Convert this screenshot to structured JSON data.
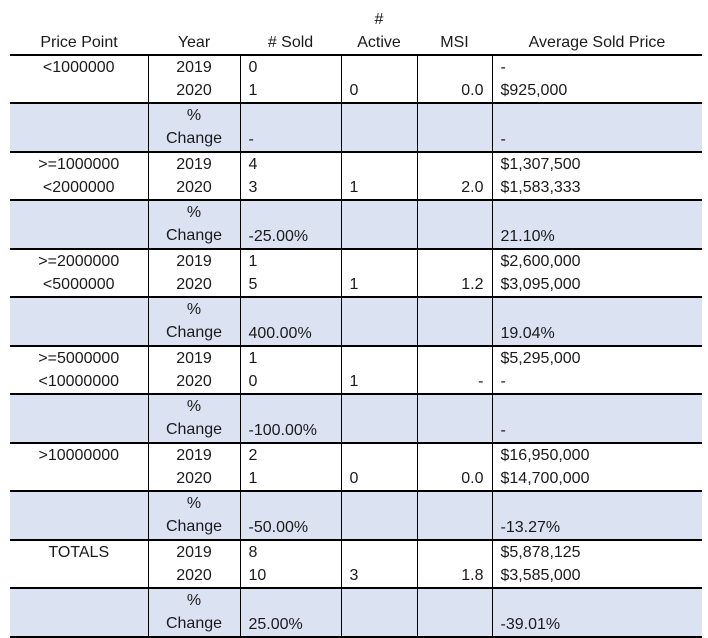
{
  "headers": {
    "price_point": "Price Point",
    "year": "Year",
    "sold": "# Sold",
    "active_top": "#",
    "active_bottom": "Active",
    "msi": "MSI",
    "avg_price": "Average Sold Price"
  },
  "change_label_top": "%",
  "change_label_bottom": "Change",
  "groups": [
    {
      "label1": "<1000000",
      "label2": "",
      "years": [
        "2019",
        "2020"
      ],
      "sold": [
        "0",
        "1"
      ],
      "active": "0",
      "msi": "0.0",
      "avg": [
        "-",
        "$925,000"
      ],
      "chg_sold": "-",
      "chg_avg": "-"
    },
    {
      "label1": ">=1000000",
      "label2": "<2000000",
      "years": [
        "2019",
        "2020"
      ],
      "sold": [
        "4",
        "3"
      ],
      "active": "1",
      "msi": "2.0",
      "avg": [
        "$1,307,500",
        "$1,583,333"
      ],
      "chg_sold": "-25.00%",
      "chg_avg": "21.10%"
    },
    {
      "label1": ">=2000000",
      "label2": "<5000000",
      "years": [
        "2019",
        "2020"
      ],
      "sold": [
        "1",
        "5"
      ],
      "active": "1",
      "msi": "1.2",
      "avg": [
        "$2,600,000",
        "$3,095,000"
      ],
      "chg_sold": "400.00%",
      "chg_avg": "19.04%"
    },
    {
      "label1": ">=5000000",
      "label2": "<10000000",
      "years": [
        "2019",
        "2020"
      ],
      "sold": [
        "1",
        "0"
      ],
      "active": "1",
      "msi": "-",
      "avg": [
        "$5,295,000",
        "-"
      ],
      "chg_sold": "-100.00%",
      "chg_avg": "-"
    },
    {
      "label1": ">10000000",
      "label2": "",
      "years": [
        "2019",
        "2020"
      ],
      "sold": [
        "2",
        "1"
      ],
      "active": "0",
      "msi": "0.0",
      "avg": [
        "$16,950,000",
        "$14,700,000"
      ],
      "chg_sold": "-50.00%",
      "chg_avg": "-13.27%"
    },
    {
      "label1": "TOTALS",
      "label2": "",
      "years": [
        "2019",
        "2020"
      ],
      "sold": [
        "8",
        "10"
      ],
      "active": "3",
      "msi": "1.8",
      "avg": [
        "$5,878,125",
        "$3,585,000"
      ],
      "chg_sold": "25.00%",
      "chg_avg": "-39.01%"
    }
  ],
  "colors": {
    "change_row_bg": "#dbe2f2",
    "rule": "#000000"
  }
}
